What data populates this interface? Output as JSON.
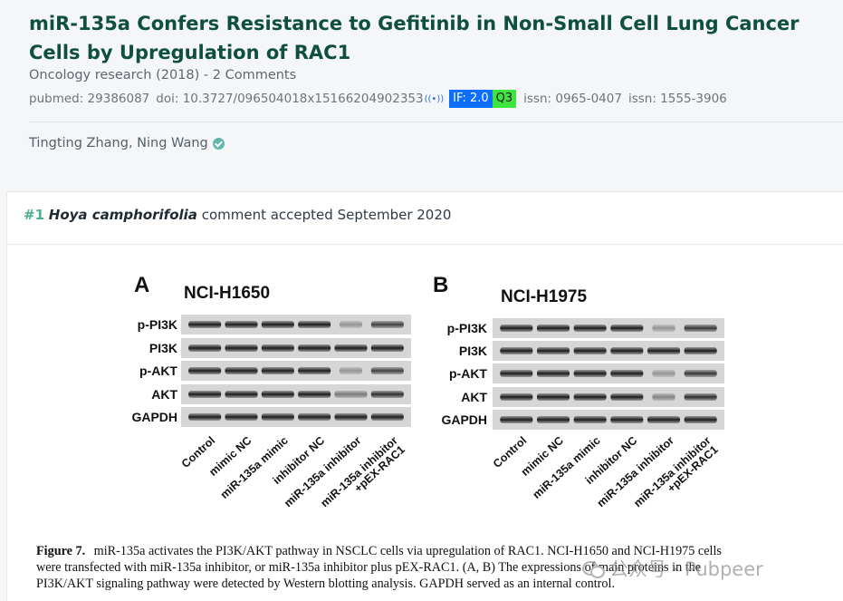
{
  "paper": {
    "title": "miR-135a Confers Resistance to Gefitinib in Non-Small Cell Lung Cancer Cells by Upregulation of RAC1",
    "journal_line": "Oncology research (2018) - 2 Comments",
    "pubmed": "pubmed: 29386087",
    "doi": "doi: 10.3727/096504018x15166204902353",
    "doi_icon": "broadcast-icon",
    "impact_factor": "IF: 2.0",
    "quartile": "Q3",
    "issn_print": "issn: 0965-0407",
    "issn_online": "issn: 1555-3906",
    "authors": "Tingting Zhang, Ning Wang",
    "verified_icon": "verified-check-icon",
    "colors": {
      "title": "#0f4f3e",
      "if_badge": "#0d6efd",
      "q_badge": "#3ee53e",
      "verified": "#5fb8ad"
    }
  },
  "comment": {
    "number": "#1",
    "user": "Hoya camphorifolia",
    "text": "comment accepted September 2020"
  },
  "figure": {
    "panels": [
      {
        "letter": "A",
        "cell_line": "NCI-H1650"
      },
      {
        "letter": "B",
        "cell_line": "NCI-H1975"
      }
    ],
    "proteins": [
      "p-PI3K",
      "PI3K",
      "p-AKT",
      "AKT",
      "GAPDH"
    ],
    "lanes": [
      "Control",
      "mimic NC",
      "miR-135a mimic",
      "inhibitor NC",
      "miR-135a inhibitor",
      "miR-135a inhibitor",
      "+pEX-RAC1"
    ],
    "caption": {
      "label": "Figure 7.",
      "line1": "miR-135a activates the PI3K/AKT pathway in NSCLC cells via upregulation of RAC1. NCI-H1650 and NCI-H1975 cells",
      "line2": "were transfected with miR-135a inhibitor, or miR-135a inhibitor plus pEX-RAC1. (A, B) The expressions of main proteins in the",
      "line3": "PI3K/AKT signaling pathway were detected by Western blotting analysis. GAPDH served as an internal control."
    }
  },
  "watermark": {
    "text": "公众号 · Pubpeer",
    "icon": "wechat-icon"
  }
}
